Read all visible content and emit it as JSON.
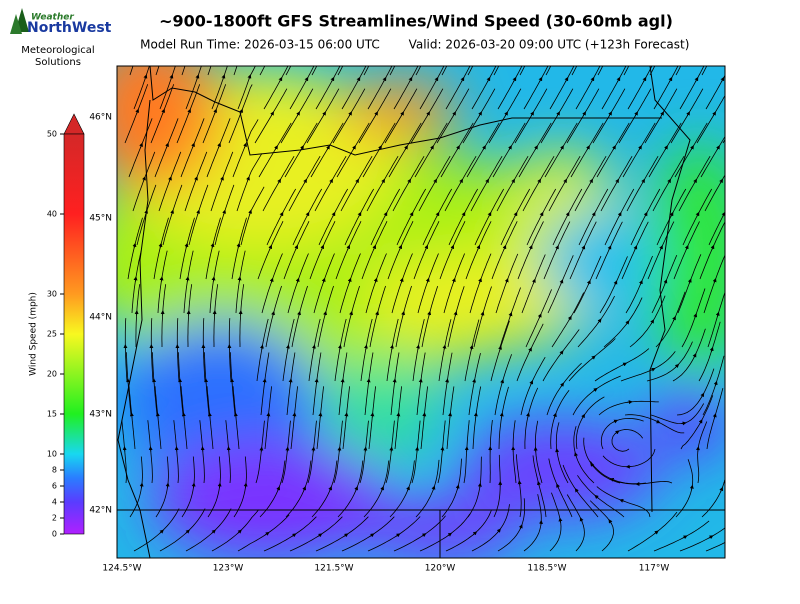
{
  "logo": {
    "top": "Weather",
    "brand": "NorthWest",
    "line1": "Meteorological",
    "line2": "Solutions"
  },
  "header": {
    "title": "~900-1800ft GFS Streamlines/Wind Speed (30-60mb agl)",
    "run": "Model Run Time: 2026-03-15 06:00 UTC",
    "valid": "Valid: 2026-03-20 09:00 UTC  (+123h Forecast)"
  },
  "colorbar": {
    "label": "Wind Speed (mph)",
    "lim": [
      0,
      50
    ],
    "ticks": [
      0,
      2,
      4,
      6,
      8,
      10,
      15,
      20,
      25,
      30,
      40,
      50
    ]
  },
  "map": {
    "lon_labels": [
      "124.5°W",
      "123°W",
      "121.5°W",
      "120°W",
      "118.5°W",
      "117°W"
    ],
    "lat_labels": [
      "46°N",
      "45°N",
      "44°N",
      "43°N",
      "42°N"
    ]
  }
}
